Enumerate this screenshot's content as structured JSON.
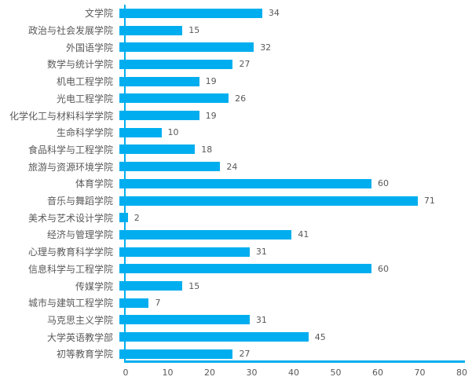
{
  "chart_data": {
    "type": "bar",
    "orientation": "horizontal",
    "title": "",
    "xlabel": "",
    "ylabel": "",
    "categories": [
      "文学院",
      "政治与社会发展学院",
      "外国语学院",
      "数学与统计学院",
      "机电工程学院",
      "光电工程学院",
      "化学化工与材料科学学院",
      "生命科学学院",
      "食品科学与工程学院",
      "旅游与资源环境学院",
      "体育学院",
      "音乐与舞蹈学院",
      "美术与艺术设计学院",
      "经济与管理学院",
      "心理与教育科学学院",
      "信息科学与工程学院",
      "传媒学院",
      "城市与建筑工程学院",
      "马克思主义学院",
      "大学英语教学部",
      "初等教育学院"
    ],
    "values": [
      34,
      15,
      32,
      27,
      19,
      26,
      19,
      10,
      18,
      24,
      60,
      71,
      2,
      41,
      31,
      60,
      15,
      7,
      31,
      45,
      27
    ],
    "value_labels_shown": true,
    "xlim": [
      0,
      80
    ],
    "xticks": [
      0,
      10,
      20,
      30,
      40,
      50,
      60,
      70,
      80
    ],
    "grid": false,
    "colors": {
      "bar": "#00AEEF",
      "axis_line": "#00AEEF",
      "category_label": "#595959",
      "value_label": "#595959",
      "tick_label": "#595959"
    }
  }
}
